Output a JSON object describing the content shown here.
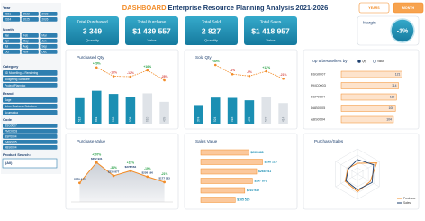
{
  "header": {
    "title_highlight": "DASHBOARD",
    "title": "Enterprise Resource Planning Analysis 2021-2026",
    "buttons": [
      "YEARS",
      "MONTH"
    ]
  },
  "filters": [
    {
      "label": "Year",
      "items": [
        "2021",
        "2022",
        "2023",
        "2024",
        "2025",
        "2026"
      ]
    },
    {
      "label": "Month",
      "items": [
        "Jan",
        "Feb",
        "Mar",
        "Apr",
        "May",
        "Jun",
        "Jul",
        "Aug",
        "Sep",
        "Oct",
        "Nov",
        "Dec"
      ]
    },
    {
      "label": "Category",
      "items": [
        "3D Modelling & Rendering",
        "Budgeting Software",
        "Project Planning"
      ]
    },
    {
      "label": "Brand",
      "items": [
        "Sage",
        "Arbor Business Solutions",
        "Acumatica"
      ]
    },
    {
      "label": "Code",
      "items": [
        "BSG0007",
        "PMC0003",
        "BSP0004",
        "DAB0005",
        "ABS0004"
      ]
    }
  ],
  "search": {
    "label": "Product Search:",
    "value": "(All)"
  },
  "kpis": [
    {
      "title": "Total Purchased",
      "value": "3 349",
      "unit": "Quantity"
    },
    {
      "title": "Total Purchase",
      "value": "$1 439 557",
      "unit": "Value"
    },
    {
      "title": "Total Sold",
      "value": "2 827",
      "unit": "Quantity"
    },
    {
      "title": "Total Sales",
      "value": "$1 418 957",
      "unit": "Value"
    }
  ],
  "margin": {
    "title": "Margin",
    "value": "-1%"
  },
  "chart_data": [
    {
      "type": "bar",
      "title": "Purchased Qty",
      "values": [
        513,
        661,
        598,
        528,
        610,
        439
      ],
      "colors": [
        "#1b8fb3",
        "#1b8fb3",
        "#1b8fb3",
        "#1b8fb3",
        "#dfe3e8",
        "#dfe3e8"
      ],
      "ylim": [
        0,
        800
      ],
      "line_values": [
        null,
        29,
        -10,
        -12,
        16,
        -28
      ],
      "line_value_labels": [
        null,
        "+29%",
        "-10%",
        "-12%",
        "+16%",
        "-28%"
      ],
      "line_color": "#f28c28",
      "y2lim": [
        -60,
        60
      ]
    },
    {
      "type": "bar",
      "title": "Sold Qty",
      "values": [
        374,
        524,
        518,
        470,
        527,
        414
      ],
      "colors": [
        "#1b8fb3",
        "#1b8fb3",
        "#1b8fb3",
        "#1b8fb3",
        "#dfe3e8",
        "#dfe3e8"
      ],
      "ylim": [
        0,
        800
      ],
      "line_values": [
        null,
        40,
        -1,
        -9,
        12,
        -21
      ],
      "line_value_labels": [
        null,
        "+40%",
        "-1%",
        "-9%",
        "+12%",
        "-21%"
      ],
      "line_color": "#f28c28",
      "y2lim": [
        -60,
        60
      ]
    },
    {
      "type": "hbar",
      "title": "Top 5 bestsellers by:",
      "options": [
        "Qty",
        "Value"
      ],
      "categories": [
        "BSG0007",
        "PMC0003",
        "BSP0004",
        "DAB0005",
        "ABS0004"
      ],
      "values": [
        121,
        114,
        110,
        108,
        104
      ],
      "xlim": [
        0,
        140
      ],
      "color": "#fde3cc",
      "edge_color": "#f28c28"
    },
    {
      "type": "area",
      "title": "Purchase Value",
      "values": [
        170412,
        352931,
        233877,
        278564,
        226190,
        177583
      ],
      "value_labels": [
        "$170 412",
        "$352 931",
        "$233 877",
        "$278 564",
        "$226 190",
        "$177 583"
      ],
      "change_labels": [
        null,
        "+107%",
        "-34%",
        "+19%",
        "-19%",
        "-21%"
      ],
      "ylim": [
        0,
        450000
      ],
      "color": "#f28c28"
    },
    {
      "type": "hbar",
      "title": "Sales Value",
      "values": [
        230468,
        296115,
        268041,
        247876,
        210932,
        165525
      ],
      "value_labels": [
        "$230 468",
        "$296 115",
        "$268 041",
        "$247 876",
        "$210 932",
        "$165 525"
      ],
      "xlim": [
        0,
        350000
      ],
      "color": "#fbc89c",
      "edge_color": "#f28c28"
    },
    {
      "type": "radar",
      "title": "Purchase/Sales",
      "ylim": [
        0,
        400000
      ],
      "series": [
        {
          "name": "Purchase",
          "color": "#f28c28",
          "values": [
            170412,
            352931,
            233877,
            278564,
            226190,
            177583
          ]
        },
        {
          "name": "Sales",
          "color": "#1d3f6e",
          "values": [
            230468,
            296115,
            268041,
            247876,
            210932,
            165525
          ]
        }
      ]
    }
  ]
}
